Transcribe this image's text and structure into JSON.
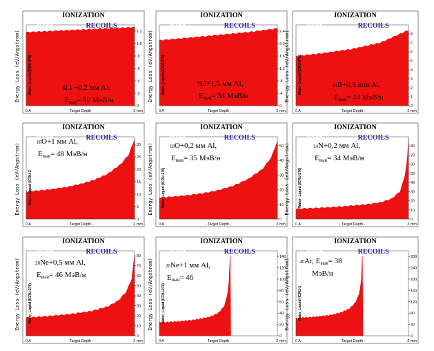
{
  "colors": {
    "fill": "#ee1111",
    "recoils": "#1a1aa0",
    "ions": "#ffffff"
  },
  "chart_data": [
    {
      "type": "area",
      "title": "IONIZATION",
      "legend": [
        "IONS",
        "RECOILS"
      ],
      "ylabel": "Energy Loss (eV/Angstrom)",
      "xlabel": "- Target Depth -",
      "xlim_labels": [
        "0 A",
        "2 mm"
      ],
      "material": "Water_Liquid (ICRU-276)",
      "annotation": [
        "⁶Li +0,2 мм Al,",
        "Eвыв= 50 МэВ/н"
      ],
      "yticks": [
        "0",
        ".2",
        ".4",
        ".6",
        ".8",
        "1.0",
        "1.2"
      ],
      "ylim": [
        0,
        1.3
      ],
      "x": [
        0,
        0.5,
        1.0,
        1.5,
        2.0
      ],
      "y": [
        1.18,
        1.2,
        1.22,
        1.24,
        1.26
      ]
    },
    {
      "type": "area",
      "title": "IONIZATION",
      "legend": [
        "IONS",
        "RECOILS"
      ],
      "ylabel": "Energy Loss (eV/Angstrom)",
      "xlabel": "- Target Depth -",
      "xlim_labels": [
        "0 A",
        "2 mm"
      ],
      "material": "Water_Liquid (ICRU-276)",
      "annotation": [
        "⁷Li+1,5 мм Al,",
        "Eвыв= 34 МэВ/н"
      ],
      "yticks": [
        "0",
        ".4",
        ".8",
        "1.2",
        "1.6",
        "2.0",
        "2.4"
      ],
      "ylim": [
        0,
        2.6
      ],
      "x": [
        0,
        0.5,
        1.0,
        1.5,
        2.0
      ],
      "y": [
        2.1,
        2.18,
        2.27,
        2.36,
        2.48
      ]
    },
    {
      "type": "area",
      "title": "IONIZATION",
      "legend": [
        "IONS",
        "RECOILS"
      ],
      "ylabel": "Energy Loss (eV/Angstrom)",
      "xlabel": "- Target Depth -",
      "xlim_labels": [
        "0 A",
        "2 mm"
      ],
      "material": "Water_Liquid (ICRU-276)",
      "annotation": [
        "¹¹B+0,5 mm Al,",
        "Eвыв= 34 МэВ/н"
      ],
      "yticks": [
        "0",
        "1",
        "2",
        "3",
        "4",
        "5",
        "6",
        "7",
        "8"
      ],
      "ylim": [
        0,
        9
      ],
      "x": [
        0,
        0.5,
        1.0,
        1.5,
        2.0
      ],
      "y": [
        5.5,
        5.85,
        6.3,
        7.0,
        8.4
      ]
    },
    {
      "type": "area",
      "title": "IONIZATION",
      "legend": [
        "IONS",
        "RECOILS"
      ],
      "ylabel": "Energy Loss (eV/Angstrom)",
      "xlabel": "- Target Depth -",
      "xlim_labels": [
        "0 A",
        "2 mm"
      ],
      "material": "Water_Liquid (ICRU-2",
      "annotation": [
        "¹⁶O+1 мм Al,",
        "Eвыв= 48 МэВ/н"
      ],
      "yticks": [
        "0",
        "5",
        "10",
        "15",
        "20",
        "25",
        "30"
      ],
      "ylim": [
        0,
        33
      ],
      "x": [
        0,
        0.25,
        0.5,
        0.75,
        1.0,
        1.25,
        1.5,
        1.75,
        1.9,
        2.0
      ],
      "y": [
        11,
        11.4,
        12,
        12.8,
        14,
        15.6,
        18,
        22,
        26,
        32
      ]
    },
    {
      "type": "area",
      "title": "IONIZATION",
      "legend": [
        "IONS",
        "RECOILS"
      ],
      "ylabel": "Energy Loss (eV/Angstrom)",
      "xlabel": "- Target Depth -",
      "xlim_labels": [
        "0 A",
        "2 mm"
      ],
      "material": "Water_Liquid (ICRU-276)",
      "annotation": [
        "¹⁸O+0,2 мм Al,",
        "Eвыв= 35 МэВ/н"
      ],
      "yticks": [
        "0",
        "10",
        "20",
        "30",
        "40",
        "50"
      ],
      "ylim": [
        0,
        56
      ],
      "x": [
        0,
        0.25,
        0.5,
        0.75,
        1.0,
        1.25,
        1.5,
        1.75,
        1.9,
        2.0
      ],
      "y": [
        14.5,
        15.2,
        16.2,
        17.5,
        19.5,
        22.5,
        27,
        34,
        42,
        53
      ]
    },
    {
      "type": "area",
      "title": "IONIZATION",
      "legend": [
        "IONS",
        "RECOILS"
      ],
      "ylabel": "Energy Loss (eV/Angstrom)",
      "xlabel": "- Target Depth -",
      "xlim_labels": [
        "0 A",
        "2 mm"
      ],
      "material": "Water_Liquid (ICRU-276)",
      "annotation": [
        "¹⁴N+0,2 мм Al,",
        "Eвыв= 34 МэВ/н"
      ],
      "yticks": [
        "0",
        "10",
        "20",
        "30",
        "40",
        "50",
        "60",
        "70",
        "80"
      ],
      "ylim": [
        0,
        90
      ],
      "x": [
        0,
        0.4,
        0.8,
        1.2,
        1.5,
        1.7,
        1.85,
        1.93,
        1.98,
        2.0
      ],
      "y": [
        11,
        12,
        13.5,
        15.5,
        18,
        22,
        30,
        45,
        65,
        88
      ]
    },
    {
      "type": "area",
      "title": "IONIZATION",
      "legend": [
        "IONS",
        "RECOILS"
      ],
      "ylabel": "Energy Loss (eV/Angstrom)",
      "xlabel": "- Target Depth -",
      "xlim_labels": [
        "0 A",
        "2 mm"
      ],
      "material": "Water_Liquid (ICRU-276)",
      "annotation": [
        "²⁰Ne+0,5 мм Al,",
        "Eвыв= 46 МэВ/н"
      ],
      "yticks": [
        "0",
        "10",
        "20",
        "30",
        "40",
        "50",
        "60",
        "70",
        "80"
      ],
      "ylim": [
        0,
        85
      ],
      "x": [
        0,
        0.4,
        0.8,
        1.2,
        1.5,
        1.7,
        1.85,
        1.95,
        2.0
      ],
      "y": [
        18,
        19.5,
        21.5,
        24.5,
        29,
        35,
        44,
        57,
        80
      ]
    },
    {
      "type": "area",
      "title": "IONIZATION",
      "legend": [
        "IONS",
        "RECOILS"
      ],
      "ylabel": "Energy Loss (eV/Angstrom)",
      "xlabel": "- Target Depth -",
      "xlim_labels": [
        "0 A",
        "2 mm"
      ],
      "material": "Water_Liquid (ICRU-276)",
      "annotation": [
        "²⁰Ne+1 мм Al,",
        "Eвыв= 46"
      ],
      "yticks": [
        "0",
        "20",
        "40",
        "60",
        "80",
        "100",
        "120",
        "140"
      ],
      "ylim": [
        0,
        150
      ],
      "x": [
        0,
        0.3,
        0.6,
        0.85,
        1.0,
        1.1,
        1.15,
        1.18,
        1.2,
        1.21
      ],
      "y": [
        23,
        25,
        28,
        33,
        40,
        52,
        70,
        95,
        142,
        0
      ]
    },
    {
      "type": "area",
      "title": "IONIZATION",
      "legend": [
        "IONS",
        "RECOILS"
      ],
      "ylabel": "Energy Loss (eV/Angstrom)",
      "xlabel": "- Target Depth -",
      "xlim_labels": [
        "0 A",
        "2 mm"
      ],
      "material": "Water_Liquid (ICRU-1",
      "annotation": [
        "⁴⁰Ar, Eвыв= 38",
        "МэВ/н"
      ],
      "yticks": [
        "0",
        "40",
        "80",
        "120",
        "160",
        "200",
        "240",
        "280"
      ],
      "ylim": [
        0,
        300
      ],
      "x": [
        0,
        0.3,
        0.6,
        0.8,
        0.95,
        1.05,
        1.12,
        1.16,
        1.18,
        1.19
      ],
      "y": [
        62,
        66,
        72,
        82,
        95,
        115,
        145,
        190,
        285,
        0
      ]
    }
  ]
}
